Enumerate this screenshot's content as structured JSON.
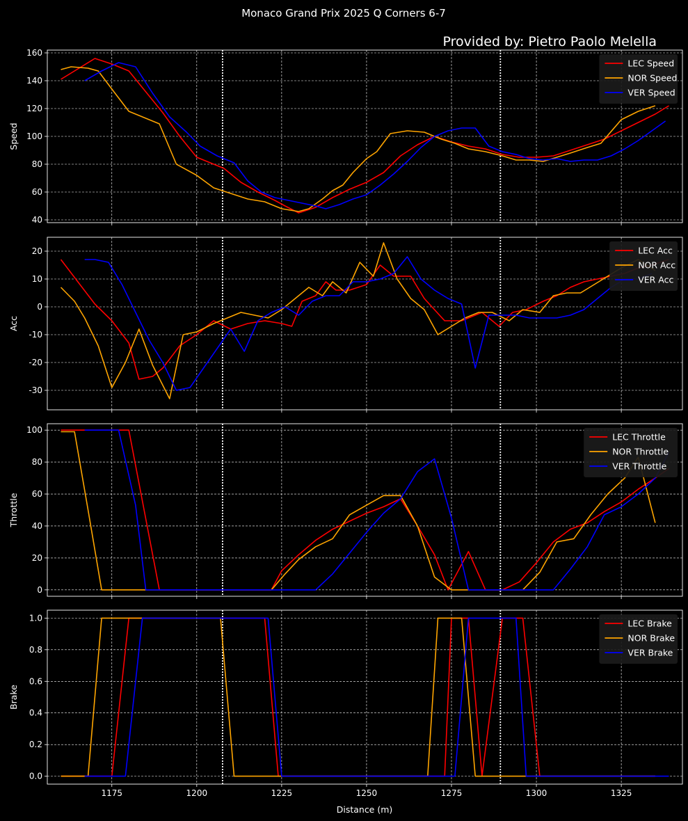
{
  "figure": {
    "title": "Monaco Grand Prix 2025 Q Corners 6-7",
    "credit": "Provided by: Pietro Paolo Melella",
    "xlabel": "Distance (m)",
    "x_ticks": [
      1175,
      1200,
      1225,
      1250,
      1275,
      1300,
      1325
    ],
    "xlim": [
      1156,
      1343
    ],
    "corner_lines": [
      1207.6,
      1289.4
    ],
    "colors": {
      "LEC": "#ff0000",
      "NOR": "#ffa500",
      "VER": "#0000ff",
      "grid": "#ffffff",
      "text": "#ffffff"
    }
  },
  "chart_data": [
    {
      "type": "line",
      "ylabel": "Speed",
      "ylim": [
        38,
        162
      ],
      "y_ticks": [
        40,
        60,
        80,
        100,
        120,
        140,
        160
      ],
      "legend_position": "top-right",
      "series": [
        {
          "name": "LEC Speed",
          "color": "#ff0000",
          "x": [
            1160,
            1170,
            1175,
            1180,
            1185,
            1190,
            1195,
            1200,
            1205,
            1208,
            1213,
            1218,
            1223,
            1226,
            1230,
            1235,
            1240,
            1245,
            1250,
            1255,
            1260,
            1265,
            1270,
            1275,
            1280,
            1285,
            1290,
            1295,
            1300,
            1305,
            1310,
            1315,
            1320,
            1325,
            1330,
            1335,
            1339
          ],
          "values": [
            141,
            156,
            152,
            147,
            132,
            117,
            100,
            85,
            80,
            77,
            67,
            60,
            54,
            50,
            45,
            49,
            56,
            62,
            67,
            74,
            86,
            94,
            100,
            96,
            93,
            91,
            87,
            85,
            85,
            86,
            90,
            94,
            98,
            104,
            110,
            116,
            122
          ]
        },
        {
          "name": "NOR Speed",
          "color": "#ffa500",
          "x": [
            1160,
            1163,
            1168,
            1171,
            1175,
            1180,
            1185,
            1189,
            1194,
            1200,
            1205,
            1210,
            1215,
            1220,
            1225,
            1230,
            1233,
            1237,
            1240,
            1243,
            1246,
            1250,
            1253,
            1257,
            1262,
            1267,
            1272,
            1276,
            1280,
            1285,
            1290,
            1294,
            1298,
            1302,
            1306,
            1310,
            1315,
            1319,
            1325,
            1330,
            1335
          ],
          "values": [
            148,
            150,
            149,
            147,
            134,
            118,
            113,
            109,
            80,
            72,
            63,
            59,
            55,
            53,
            48,
            46,
            48,
            55,
            61,
            65,
            74,
            84,
            89,
            102,
            104,
            103,
            98,
            95,
            91,
            89,
            86,
            83,
            83,
            82,
            85,
            88,
            92,
            95,
            112,
            118,
            122
          ]
        },
        {
          "name": "VER Speed",
          "color": "#0000ff",
          "x": [
            1167,
            1172,
            1177,
            1182,
            1187,
            1192,
            1197,
            1201,
            1206,
            1211,
            1215,
            1219,
            1223,
            1227,
            1231,
            1235,
            1238,
            1242,
            1246,
            1250,
            1254,
            1258,
            1262,
            1266,
            1270,
            1274,
            1278,
            1282,
            1286,
            1290,
            1294,
            1298,
            1302,
            1306,
            1310,
            1314,
            1318,
            1322,
            1326,
            1330,
            1334,
            1338
          ],
          "values": [
            140,
            147,
            153,
            150,
            131,
            114,
            103,
            93,
            86,
            81,
            68,
            60,
            56,
            54,
            52,
            50,
            48,
            51,
            55,
            58,
            65,
            73,
            82,
            92,
            100,
            104,
            106,
            106,
            93,
            89,
            87,
            84,
            83,
            84,
            82,
            83,
            83,
            86,
            91,
            97,
            104,
            111
          ]
        }
      ]
    },
    {
      "type": "line",
      "ylabel": "Acc",
      "ylim": [
        -37,
        25
      ],
      "y_ticks": [
        -30,
        -20,
        -10,
        0,
        10,
        20
      ],
      "legend_position": "top-right",
      "series": [
        {
          "name": "LEC Acc",
          "color": "#ff0000",
          "x": [
            1160,
            1165,
            1170,
            1175,
            1180,
            1183,
            1187,
            1190,
            1195,
            1200,
            1205,
            1210,
            1215,
            1220,
            1225,
            1228,
            1231,
            1235,
            1238,
            1241,
            1245,
            1250,
            1254,
            1258,
            1263,
            1267,
            1273,
            1278,
            1284,
            1289,
            1293,
            1297,
            1302,
            1306,
            1310,
            1314,
            1318,
            1322,
            1326,
            1330,
            1334,
            1339
          ],
          "values": [
            17,
            9,
            1,
            -5,
            -13,
            -26,
            -25,
            -22,
            -14,
            -10,
            -5,
            -8,
            -6,
            -5,
            -6,
            -7,
            2,
            4,
            9,
            6,
            6,
            8,
            15,
            11,
            11,
            3,
            -5,
            -5,
            -2,
            -7,
            -2,
            -1,
            2,
            4,
            7,
            9,
            10,
            11,
            12,
            14,
            15,
            17
          ]
        },
        {
          "name": "NOR Acc",
          "color": "#ffa500",
          "x": [
            1160,
            1164,
            1167,
            1171,
            1175,
            1179,
            1183,
            1187,
            1192,
            1196,
            1200,
            1205,
            1209,
            1213,
            1217,
            1221,
            1225,
            1229,
            1233,
            1237,
            1240,
            1244,
            1248,
            1252,
            1255,
            1259,
            1263,
            1267,
            1271,
            1275,
            1279,
            1283,
            1287,
            1292,
            1296,
            1301,
            1305,
            1309,
            1313,
            1317,
            1321,
            1325,
            1330,
            1335
          ],
          "values": [
            7,
            2,
            -4,
            -14,
            -29,
            -20,
            -8,
            -21,
            -33,
            -10,
            -9,
            -6,
            -4,
            -2,
            -3,
            -4,
            -1,
            3,
            7,
            4,
            9,
            5,
            16,
            11,
            23,
            10,
            3,
            -1,
            -10,
            -7,
            -4,
            -2,
            -2,
            -5,
            -1,
            -2,
            4,
            5,
            5,
            8,
            11,
            14,
            17,
            13
          ]
        },
        {
          "name": "VER Acc",
          "color": "#0000ff",
          "x": [
            1167,
            1170,
            1174,
            1178,
            1182,
            1186,
            1190,
            1194,
            1198,
            1202,
            1206,
            1210,
            1214,
            1218,
            1222,
            1226,
            1230,
            1234,
            1238,
            1242,
            1246,
            1250,
            1254,
            1258,
            1262,
            1266,
            1270,
            1274,
            1278,
            1282,
            1286,
            1290,
            1294,
            1298,
            1302,
            1306,
            1310,
            1314,
            1318,
            1322,
            1326,
            1330,
            1334
          ],
          "values": [
            17,
            17,
            16,
            8,
            -2,
            -12,
            -20,
            -30,
            -29,
            -22,
            -15,
            -8,
            -16,
            -5,
            -2,
            0,
            -3,
            2,
            4,
            4,
            9,
            9,
            10,
            12,
            18,
            10,
            6,
            3,
            1,
            -22,
            -3,
            -3,
            -3,
            -4,
            -4,
            -4,
            -3,
            -1,
            3,
            7,
            10,
            10,
            12
          ]
        }
      ]
    },
    {
      "type": "line",
      "ylabel": "Throttle",
      "ylim": [
        -4,
        104
      ],
      "y_ticks": [
        0,
        20,
        40,
        60,
        80,
        100
      ],
      "legend_position": "top-right",
      "series": [
        {
          "name": "LEC Throttle",
          "color": "#ff0000",
          "x": [
            1160,
            1180,
            1189,
            1210,
            1222,
            1225,
            1230,
            1235,
            1240,
            1245,
            1250,
            1255,
            1260,
            1265,
            1270,
            1274,
            1280,
            1285,
            1290,
            1295,
            1300,
            1305,
            1310,
            1315,
            1320,
            1325,
            1330,
            1335,
            1339
          ],
          "values": [
            100,
            100,
            0,
            0,
            0,
            12,
            22,
            31,
            38,
            43,
            48,
            52,
            57,
            40,
            22,
            0,
            24,
            0,
            0,
            5,
            17,
            30,
            38,
            42,
            49,
            55,
            63,
            70,
            76
          ]
        },
        {
          "name": "NOR Throttle",
          "color": "#ffa500",
          "x": [
            1160,
            1164,
            1168,
            1172,
            1176,
            1180,
            1184,
            1188,
            1195,
            1205,
            1215,
            1222,
            1226,
            1230,
            1235,
            1240,
            1245,
            1250,
            1255,
            1260,
            1265,
            1270,
            1275,
            1280,
            1285,
            1292,
            1296,
            1301,
            1306,
            1311,
            1316,
            1321,
            1326,
            1330,
            1335
          ],
          "values": [
            99,
            99,
            50,
            0,
            0,
            0,
            0,
            0,
            0,
            0,
            0,
            0,
            10,
            19,
            27,
            32,
            47,
            53,
            59,
            59,
            40,
            8,
            0,
            0,
            0,
            0,
            0,
            11,
            30,
            32,
            47,
            60,
            70,
            83,
            42
          ]
        },
        {
          "name": "VER Throttle",
          "color": "#0000ff",
          "x": [
            1167,
            1172,
            1177,
            1182,
            1185,
            1190,
            1195,
            1200,
            1205,
            1210,
            1215,
            1220,
            1225,
            1230,
            1235,
            1240,
            1245,
            1250,
            1255,
            1260,
            1265,
            1270,
            1275,
            1280,
            1285,
            1290,
            1295,
            1300,
            1305,
            1310,
            1315,
            1320,
            1325,
            1330,
            1335,
            1339
          ],
          "values": [
            100,
            100,
            100,
            53,
            0,
            0,
            0,
            0,
            0,
            0,
            0,
            0,
            0,
            0,
            0,
            10,
            23,
            36,
            48,
            57,
            74,
            82,
            45,
            0,
            0,
            0,
            0,
            0,
            0,
            13,
            27,
            47,
            52,
            60,
            70,
            86
          ]
        }
      ]
    },
    {
      "type": "line",
      "ylabel": "Brake",
      "ylim": [
        -0.05,
        1.05
      ],
      "y_ticks": [
        0.0,
        0.2,
        0.4,
        0.6,
        0.8,
        1.0
      ],
      "legend_position": "top-right",
      "series": [
        {
          "name": "LEC Brake",
          "color": "#ff0000",
          "x": [
            1160,
            1166,
            1171,
            1175,
            1180,
            1185,
            1190,
            1200,
            1210,
            1220,
            1224,
            1240,
            1260,
            1270,
            1273,
            1275,
            1280,
            1284,
            1290,
            1296,
            1301,
            1310,
            1320,
            1335
          ],
          "values": [
            0,
            0,
            0,
            0,
            1,
            1,
            1,
            1,
            1,
            1,
            0,
            0,
            0,
            0,
            0,
            1,
            1,
            0,
            1,
            1,
            0,
            0,
            0,
            0
          ]
        },
        {
          "name": "NOR Brake",
          "color": "#ffa500",
          "x": [
            1160,
            1164,
            1168,
            1172,
            1176,
            1180,
            1190,
            1200,
            1207,
            1211,
            1220,
            1240,
            1260,
            1268,
            1271,
            1275,
            1278,
            1282,
            1290,
            1297,
            1310,
            1320,
            1335
          ],
          "values": [
            0,
            0,
            0,
            1,
            1,
            1,
            1,
            1,
            1,
            0,
            0,
            0,
            0,
            0,
            1,
            1,
            1,
            0,
            0,
            0,
            0,
            0,
            0
          ]
        },
        {
          "name": "VER Brake",
          "color": "#0000ff",
          "x": [
            1167,
            1172,
            1179,
            1184,
            1190,
            1200,
            1210,
            1221,
            1225,
            1240,
            1260,
            1276,
            1280,
            1285,
            1290,
            1294,
            1297,
            1305,
            1315,
            1325,
            1335,
            1339
          ],
          "values": [
            0,
            0,
            0,
            1,
            1,
            1,
            1,
            1,
            0,
            0,
            0,
            0,
            1,
            1,
            1,
            1,
            0,
            0,
            0,
            0,
            0,
            0
          ]
        }
      ]
    }
  ]
}
